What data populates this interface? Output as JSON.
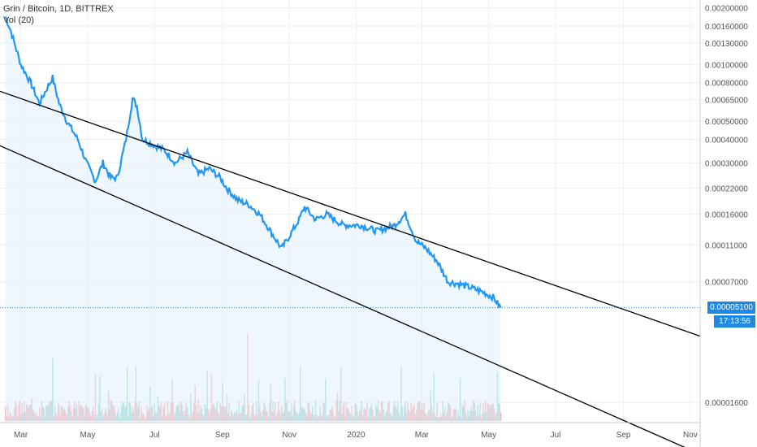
{
  "legend": {
    "symbol": "Grin / Bitcoin, 1D, BITTREX",
    "volume": "Vol (20)"
  },
  "current_price": "0.00005100",
  "countdown": "17:13:56",
  "colors": {
    "line": "#2196f3",
    "fill": "#e3f2fd",
    "vol_up": "#26a69a",
    "vol_down": "#ef5350",
    "grid": "#eeeeee",
    "trend": "#000000",
    "price_tag": "#1e88e5"
  },
  "chart_data": {
    "type": "line",
    "title": "Grin / Bitcoin, 1D, BITTREX",
    "scale": "log",
    "x_range": [
      "2019-02-10",
      "2020-11-10"
    ],
    "y_range": [
      1.25e-05,
      0.0022
    ],
    "x_ticks": [
      {
        "date": "2019-03-01",
        "label": "Mar"
      },
      {
        "date": "2019-05-01",
        "label": "May"
      },
      {
        "date": "2019-07-01",
        "label": "Jul"
      },
      {
        "date": "2019-09-01",
        "label": "Sep"
      },
      {
        "date": "2019-11-01",
        "label": "Nov"
      },
      {
        "date": "2020-01-01",
        "label": "2020"
      },
      {
        "date": "2020-03-01",
        "label": "Mar"
      },
      {
        "date": "2020-05-01",
        "label": "May"
      },
      {
        "date": "2020-07-01",
        "label": "Jul"
      },
      {
        "date": "2020-09-01",
        "label": "Sep"
      },
      {
        "date": "2020-11-01",
        "label": "Nov"
      }
    ],
    "y_ticks": [
      {
        "value": 0.002,
        "label": "0.00200000"
      },
      {
        "value": 0.0016,
        "label": "0.00160000"
      },
      {
        "value": 0.0013,
        "label": "0.00130000"
      },
      {
        "value": 0.001,
        "label": "0.00100000"
      },
      {
        "value": 0.0008,
        "label": "0.00080000"
      },
      {
        "value": 0.00065,
        "label": "0.00065000"
      },
      {
        "value": 0.0005,
        "label": "0.00050000"
      },
      {
        "value": 0.0004,
        "label": "0.00040000"
      },
      {
        "value": 0.0003,
        "label": "0.00030000"
      },
      {
        "value": 0.00022,
        "label": "0.00022000"
      },
      {
        "value": 0.00016,
        "label": "0.00016000"
      },
      {
        "value": 0.00011,
        "label": "0.00011000"
      },
      {
        "value": 7e-05,
        "label": "0.00007000"
      },
      {
        "value": 1.6e-05,
        "label": "0.00001600"
      }
    ],
    "series": [
      {
        "values": [
          [
            "2019-02-15",
            0.0018
          ],
          [
            "2019-02-20",
            0.0015
          ],
          [
            "2019-03-01",
            0.001
          ],
          [
            "2019-03-10",
            0.0008
          ],
          [
            "2019-03-18",
            0.00062
          ],
          [
            "2019-03-25",
            0.00075
          ],
          [
            "2019-03-30",
            0.00085
          ],
          [
            "2019-04-05",
            0.00062
          ],
          [
            "2019-04-12",
            0.0005
          ],
          [
            "2019-04-22",
            0.0004
          ],
          [
            "2019-04-30",
            0.0003
          ],
          [
            "2019-05-08",
            0.00024
          ],
          [
            "2019-05-15",
            0.0003
          ],
          [
            "2019-05-22",
            0.00025
          ],
          [
            "2019-05-28",
            0.00025
          ],
          [
            "2019-06-05",
            0.0004
          ],
          [
            "2019-06-11",
            0.00066
          ],
          [
            "2019-06-15",
            0.0006
          ],
          [
            "2019-06-20",
            0.0004
          ],
          [
            "2019-06-28",
            0.00038
          ],
          [
            "2019-07-10",
            0.00035
          ],
          [
            "2019-07-20",
            0.0003
          ],
          [
            "2019-07-31",
            0.00034
          ],
          [
            "2019-08-10",
            0.00026
          ],
          [
            "2019-08-20",
            0.00028
          ],
          [
            "2019-08-30",
            0.00025
          ],
          [
            "2019-09-05",
            0.00022
          ],
          [
            "2019-09-15",
            0.00019
          ],
          [
            "2019-09-25",
            0.00018
          ],
          [
            "2019-10-05",
            0.00016
          ],
          [
            "2019-10-15",
            0.00013
          ],
          [
            "2019-10-25",
            0.000105
          ],
          [
            "2019-11-02",
            0.000125
          ],
          [
            "2019-11-10",
            0.00015
          ],
          [
            "2019-11-15",
            0.000175
          ],
          [
            "2019-11-25",
            0.00015
          ],
          [
            "2019-12-05",
            0.00016
          ],
          [
            "2019-12-20",
            0.00014
          ],
          [
            "2020-01-05",
            0.00014
          ],
          [
            "2020-01-20",
            0.00013
          ],
          [
            "2020-02-05",
            0.00014
          ],
          [
            "2020-02-15",
            0.00016
          ],
          [
            "2020-02-25",
            0.000115
          ],
          [
            "2020-03-05",
            0.000105
          ],
          [
            "2020-03-15",
            9e-05
          ],
          [
            "2020-03-25",
            7e-05
          ],
          [
            "2020-04-05",
            6.8e-05
          ],
          [
            "2020-04-15",
            6.5e-05
          ],
          [
            "2020-04-25",
            6.2e-05
          ],
          [
            "2020-05-05",
            5.8e-05
          ],
          [
            "2020-05-12",
            5.1e-05
          ]
        ]
      }
    ],
    "volume_bars": 455,
    "trendlines": [
      {
        "from": [
          "2019-02-10",
          0.00072
        ],
        "to": [
          "2020-11-10",
          3.6e-05
        ]
      },
      {
        "from": [
          "2019-02-10",
          0.00037
        ],
        "to": [
          "2020-11-10",
          8.5e-06
        ]
      }
    ]
  }
}
